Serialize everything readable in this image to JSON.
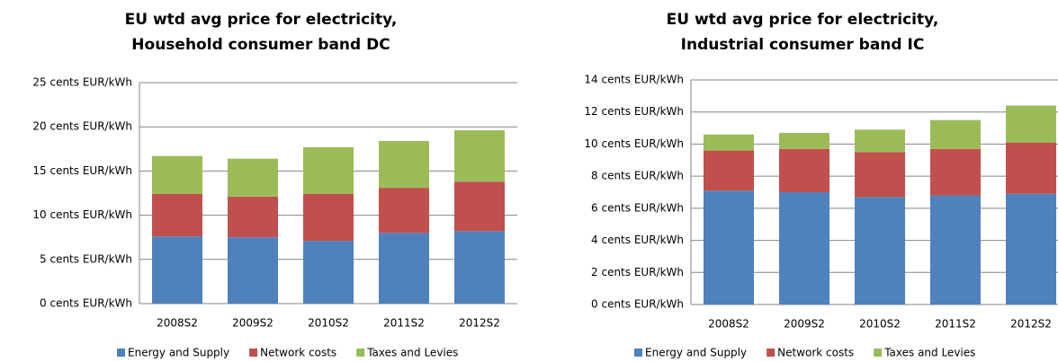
{
  "chart_data": [
    {
      "type": "stacked_bar",
      "title": [
        "EU wtd avg price for electricity,",
        "Household consumer band DC"
      ],
      "categories": [
        "2008S2",
        "2009S2",
        "2010S2",
        "2011S2",
        "2012S2"
      ],
      "series": [
        {
          "name": "Energy and Supply",
          "color": "#4f81bd",
          "values": [
            7.6,
            7.5,
            7.1,
            8.0,
            8.2
          ]
        },
        {
          "name": "Network costs",
          "color": "#c0504d",
          "values": [
            4.8,
            4.6,
            5.3,
            5.1,
            5.6
          ]
        },
        {
          "name": "Taxes and Levies",
          "color": "#9bbb59",
          "values": [
            4.3,
            4.3,
            5.3,
            5.3,
            5.8
          ]
        }
      ],
      "ylim": [
        0,
        25
      ],
      "yticks": [
        {
          "value": 0,
          "label": "0 cents EUR/kWh"
        },
        {
          "value": 5,
          "label": "5 cents EUR/kWh"
        },
        {
          "value": 10,
          "label": "10 cents EUR/kWh"
        },
        {
          "value": 15,
          "label": "15 cents EUR/kWh"
        },
        {
          "value": 20,
          "label": "20 cents EUR/kWh"
        },
        {
          "value": 25,
          "label": "25 cents EUR/kWh"
        }
      ],
      "grid": true,
      "legend": "bottom"
    },
    {
      "type": "stacked_bar",
      "title": [
        "EU wtd avg price for electricity,",
        "Industrial consumer band IC"
      ],
      "categories": [
        "2008S2",
        "2009S2",
        "2010S2",
        "2011S2",
        "2012S2"
      ],
      "series": [
        {
          "name": "Energy and Supply",
          "color": "#4f81bd",
          "values": [
            7.1,
            7.0,
            6.7,
            6.8,
            6.9
          ]
        },
        {
          "name": "Network costs",
          "color": "#c0504d",
          "values": [
            2.5,
            2.7,
            2.8,
            2.9,
            3.2
          ]
        },
        {
          "name": "Taxes and Levies",
          "color": "#9bbb59",
          "values": [
            1.0,
            1.0,
            1.4,
            1.8,
            2.3
          ]
        }
      ],
      "ylim": [
        0,
        14
      ],
      "yticks": [
        {
          "value": 0,
          "label": "0 cents EUR/kWh"
        },
        {
          "value": 2,
          "label": "2 cents EUR/kWh"
        },
        {
          "value": 4,
          "label": "4 cents EUR/kWh"
        },
        {
          "value": 6,
          "label": "6 cents EUR/kWh"
        },
        {
          "value": 8,
          "label": "8 cents EUR/kWh"
        },
        {
          "value": 10,
          "label": "10 cents EUR/kWh"
        },
        {
          "value": 12,
          "label": "12 cents EUR/kWh"
        },
        {
          "value": 14,
          "label": "14 cents EUR/kWh"
        }
      ],
      "grid": true,
      "legend": "bottom"
    }
  ]
}
